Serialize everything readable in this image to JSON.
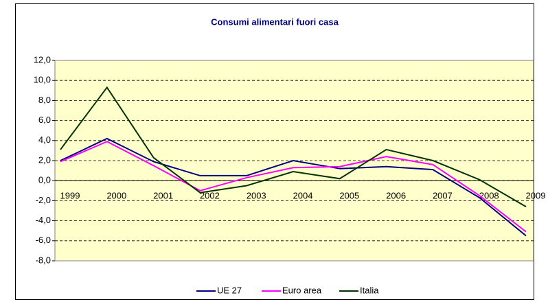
{
  "chart_data": {
    "type": "line",
    "title": "Consumi alimentari fuori casa",
    "categories": [
      "1999",
      "2000",
      "2001",
      "2002",
      "2003",
      "2004",
      "2005",
      "2006",
      "2007",
      "2008",
      "2009"
    ],
    "series": [
      {
        "name": "UE 27",
        "color": "#000080",
        "values": [
          2.0,
          4.2,
          1.9,
          0.5,
          0.5,
          2.0,
          1.2,
          1.4,
          1.1,
          -1.7,
          -5.5
        ]
      },
      {
        "name": "Euro area",
        "color": "#ff00ff",
        "values": [
          1.9,
          3.9,
          1.5,
          -1.0,
          0.3,
          1.3,
          1.4,
          2.4,
          1.6,
          -1.5,
          -5.1
        ]
      },
      {
        "name": "Italia",
        "color": "#003300",
        "values": [
          3.1,
          9.3,
          2.3,
          -1.2,
          -0.5,
          0.9,
          0.2,
          3.1,
          2.0,
          0.1,
          -2.6
        ]
      }
    ],
    "ylim": [
      -8,
      12
    ],
    "yticks": [
      {
        "value": -8,
        "label": "-8,0"
      },
      {
        "value": -6,
        "label": "-6,0"
      },
      {
        "value": -4,
        "label": "-4,0"
      },
      {
        "value": -2,
        "label": "-2,0"
      },
      {
        "value": 0,
        "label": "0,0"
      },
      {
        "value": 2,
        "label": "2,0"
      },
      {
        "value": 4,
        "label": "4,0"
      },
      {
        "value": 6,
        "label": "6,0"
      },
      {
        "value": 8,
        "label": "8,0"
      },
      {
        "value": 10,
        "label": "10,0"
      },
      {
        "value": 12,
        "label": "12,0"
      }
    ],
    "grid": true,
    "legend": "bottom"
  }
}
